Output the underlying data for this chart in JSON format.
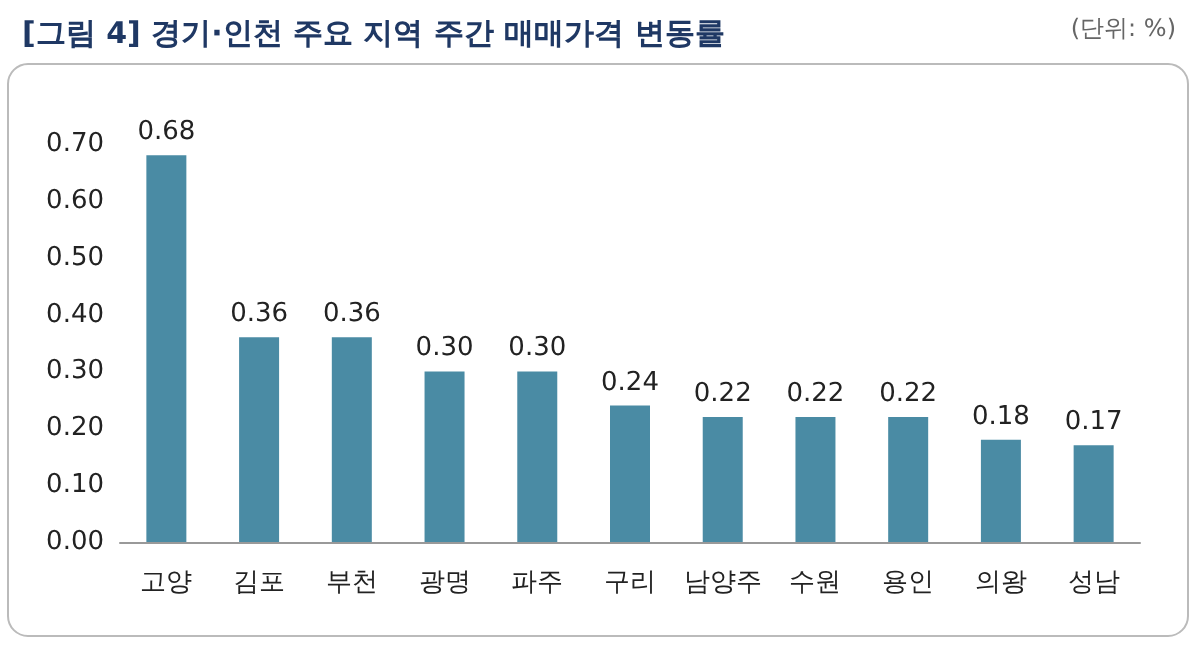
{
  "chart_data": {
    "type": "bar",
    "title": "[그림 4] 경기·인천 주요 지역 주간 매매가격 변동률",
    "annotations": [
      "(단위: %)"
    ],
    "categories": [
      "고양",
      "김포",
      "부천",
      "광명",
      "파주",
      "구리",
      "남양주",
      "수원",
      "용인",
      "의왕",
      "성남"
    ],
    "values": [
      0.68,
      0.36,
      0.36,
      0.3,
      0.3,
      0.24,
      0.22,
      0.22,
      0.22,
      0.18,
      0.17
    ],
    "value_labels": [
      "0.68",
      "0.36",
      "0.36",
      "0.30",
      "0.30",
      "0.24",
      "0.22",
      "0.22",
      "0.22",
      "0.18",
      "0.17"
    ],
    "color": "#4a8ba4",
    "ylim": [
      0,
      0.7
    ],
    "yticks": [
      {
        "value": 0,
        "label": "0.00"
      },
      {
        "value": 0.1,
        "label": "0.10"
      },
      {
        "value": 0.2,
        "label": "0.20"
      },
      {
        "value": 0.3,
        "label": "0.30"
      },
      {
        "value": 0.4,
        "label": "0.40"
      },
      {
        "value": 0.5,
        "label": "0.50"
      },
      {
        "value": 0.6,
        "label": "0.60"
      },
      {
        "value": 0.7,
        "label": "0.70"
      }
    ],
    "grid": false
  }
}
